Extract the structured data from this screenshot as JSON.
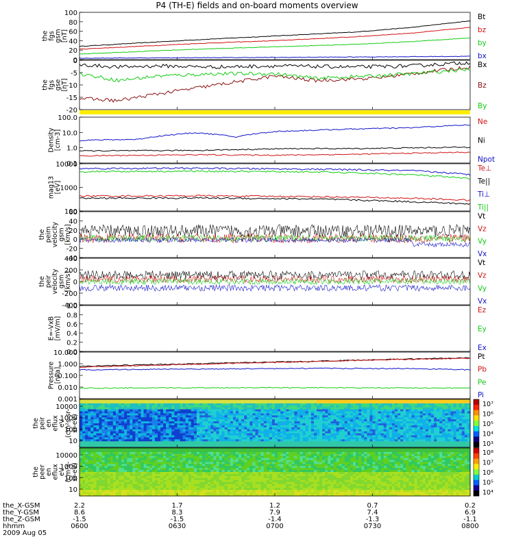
{
  "title": "P4 (TH-E) fields and on-board moments overview",
  "colors": {
    "black": "#000000",
    "red": "#d01010",
    "green": "#10cc10",
    "blue": "#1010c8",
    "yellow": "#ffee00"
  },
  "chart_data": [
    {
      "id": "fgs-mag",
      "type": "line",
      "ylabel": [
        "the",
        "fgs",
        "gsm",
        "[nT]"
      ],
      "yticks": [
        "100",
        "80",
        "60",
        "40",
        "20",
        "0"
      ],
      "ylim": [
        0,
        100
      ],
      "series": [
        {
          "name": "Bt",
          "color": "black",
          "x": [
            0,
            0.15,
            0.3,
            0.5,
            0.7,
            0.85,
            1
          ],
          "y": [
            28,
            35,
            42,
            50,
            58,
            68,
            82
          ]
        },
        {
          "name": "bz",
          "color": "red",
          "x": [
            0,
            0.15,
            0.3,
            0.5,
            0.7,
            0.85,
            1
          ],
          "y": [
            22,
            28,
            34,
            40,
            48,
            56,
            68
          ]
        },
        {
          "name": "by",
          "color": "green",
          "x": [
            0,
            0.15,
            0.3,
            0.5,
            0.7,
            0.85,
            1
          ],
          "y": [
            12,
            17,
            22,
            27,
            32,
            38,
            46
          ]
        },
        {
          "name": "bx",
          "color": "blue",
          "x": [
            0,
            0.3,
            0.6,
            1
          ],
          "y": [
            3,
            4,
            5,
            7
          ]
        }
      ]
    },
    {
      "id": "fgs-gsm",
      "type": "line",
      "ylabel": [
        "the",
        "fgs",
        "gse",
        "[nT]"
      ],
      "yticks": [
        "0",
        "-5",
        "-10",
        "-15",
        "-20"
      ],
      "ylim": [
        -22,
        0
      ],
      "series": [
        {
          "name": "Bx",
          "color": "black",
          "x": [
            0,
            0.1,
            0.2,
            0.35,
            0.5,
            0.7,
            0.85,
            1
          ],
          "y": [
            -2,
            -3,
            -2.5,
            -3,
            -2.5,
            -3,
            -2.5,
            -1
          ]
        },
        {
          "name": "Bz",
          "color": "darkred",
          "x": [
            0,
            0.1,
            0.2,
            0.35,
            0.5,
            0.6,
            0.75,
            0.85,
            1
          ],
          "y": [
            -17,
            -18,
            -15,
            -11,
            -7,
            -9,
            -8,
            -6,
            -3
          ]
        },
        {
          "name": "By",
          "color": "green",
          "x": [
            0,
            0.1,
            0.2,
            0.35,
            0.5,
            0.6,
            0.75,
            0.85,
            1
          ],
          "y": [
            -6,
            -9,
            -7,
            -6,
            -6,
            -8,
            -7,
            -6,
            -4
          ]
        }
      ]
    },
    {
      "id": "density",
      "type": "line",
      "yscale": "log",
      "ylabel": [
        "Density",
        "[cm-3]"
      ],
      "yticks": [
        "100.0",
        "10.0",
        "1.0",
        "0.1"
      ],
      "ylim": [
        0.08,
        120
      ],
      "series": [
        {
          "name": "Ne",
          "color": "red",
          "x": [
            0,
            0.3,
            0.5,
            0.7,
            1
          ],
          "y": [
            0.25,
            0.3,
            0.28,
            0.32,
            0.45
          ]
        },
        {
          "name": "Ni",
          "color": "black",
          "x": [
            0,
            0.3,
            0.55,
            0.7,
            1
          ],
          "y": [
            0.55,
            0.6,
            0.8,
            0.8,
            1.0
          ]
        },
        {
          "name": "Npot",
          "color": "blue",
          "x": [
            0,
            0.15,
            0.3,
            0.4,
            0.5,
            0.7,
            0.85,
            1
          ],
          "y": [
            3,
            3.5,
            10,
            5,
            12,
            18,
            22,
            35
          ]
        }
      ]
    },
    {
      "id": "temperature",
      "type": "line",
      "yscale": "log",
      "ylabel": [
        "mag13",
        "[eV]"
      ],
      "yticks": [
        "10000",
        "1000",
        "100"
      ],
      "ylim": [
        60,
        12000
      ],
      "series": [
        {
          "name": "Te⊥",
          "color": "red",
          "x": [
            0,
            0.3,
            0.6,
            0.85,
            1
          ],
          "y": [
            320,
            330,
            300,
            250,
            200
          ]
        },
        {
          "name": "Te||",
          "color": "black",
          "x": [
            0,
            0.3,
            0.6,
            0.85,
            1
          ],
          "y": [
            250,
            260,
            230,
            170,
            130
          ]
        },
        {
          "name": "Ti⊥",
          "color": "blue",
          "x": [
            0,
            0.3,
            0.6,
            0.85,
            1
          ],
          "y": [
            7000,
            7200,
            6500,
            5500,
            3500
          ]
        },
        {
          "name": "Ti||",
          "color": "green",
          "x": [
            0,
            0.3,
            0.6,
            0.85,
            1
          ],
          "y": [
            5000,
            5200,
            4800,
            3500,
            2200
          ]
        }
      ]
    },
    {
      "id": "peim-velocity",
      "type": "line",
      "ylabel": [
        "the",
        "peim",
        "velocity",
        "gsm",
        "[km/s]"
      ],
      "yticks": [
        "60",
        "40",
        "20",
        "0",
        "-20",
        "-40"
      ],
      "ylim": [
        -40,
        60
      ],
      "series": [
        {
          "name": "Vt",
          "color": "black"
        },
        {
          "name": "Vz",
          "color": "red"
        },
        {
          "name": "Vy",
          "color": "green"
        },
        {
          "name": "Vx",
          "color": "blue"
        }
      ]
    },
    {
      "id": "peir-velocity",
      "type": "line",
      "ylabel": [
        "the",
        "peir",
        "velocity",
        "gsm",
        "[km/s]"
      ],
      "yticks": [
        "400",
        "200",
        "0",
        "-200",
        "-400"
      ],
      "ylim": [
        -400,
        400
      ],
      "series": [
        {
          "name": "Vt",
          "color": "black"
        },
        {
          "name": "Vz",
          "color": "red"
        },
        {
          "name": "Vy",
          "color": "green"
        },
        {
          "name": "Vx",
          "color": "blue"
        }
      ]
    },
    {
      "id": "efield",
      "type": "line",
      "ylabel": [
        "E=-VxB",
        "[mV/m]"
      ],
      "yticks": [
        "1.0",
        "0.8",
        "0.6",
        "0.4",
        "0.2",
        "0.0"
      ],
      "ylim": [
        0,
        1
      ],
      "series": [
        {
          "name": "Ez",
          "color": "red"
        },
        {
          "name": "Ey",
          "color": "green"
        },
        {
          "name": "Ex",
          "color": "blue"
        }
      ]
    },
    {
      "id": "pressure",
      "type": "line",
      "yscale": "log",
      "ylabel": [
        "Pressure",
        "[nPa]"
      ],
      "yticks": [
        "10.000",
        "1.000",
        "0.100",
        "0.010",
        "0.001"
      ],
      "ylim": [
        0.001,
        10
      ],
      "series": [
        {
          "name": "Pt",
          "color": "black",
          "x": [
            0,
            0.3,
            0.6,
            1
          ],
          "y": [
            0.6,
            1.0,
            1.6,
            3.2
          ]
        },
        {
          "name": "Pb",
          "color": "red",
          "x": [
            0,
            0.3,
            0.6,
            1
          ],
          "y": [
            0.5,
            0.9,
            1.5,
            3.0
          ]
        },
        {
          "name": "Pe",
          "color": "green",
          "x": [
            0,
            0.5,
            1
          ],
          "y": [
            0.008,
            0.009,
            0.008
          ]
        },
        {
          "name": "Pi",
          "color": "blue",
          "x": [
            0,
            0.3,
            0.6,
            0.85,
            1
          ],
          "y": [
            0.3,
            0.35,
            0.4,
            0.38,
            0.3
          ]
        }
      ]
    },
    {
      "id": "peir-spectrogram",
      "type": "heatmap",
      "yscale": "log",
      "ylabel": [
        "the",
        "peir",
        "en",
        "eflux",
        "eV",
        "(cm²s-sr-",
        "sr-eV)"
      ],
      "yticks": [
        "10000",
        "1000",
        "100",
        "10"
      ],
      "colorbar_labels": [
        "10⁷",
        "10⁶",
        "10⁵",
        "10⁴",
        "10³"
      ]
    },
    {
      "id": "peer-spectrogram",
      "type": "heatmap",
      "yscale": "log",
      "ylabel": [
        "the",
        "peer",
        "en",
        "eflux",
        "eV",
        "(cm²s-",
        "sr-eV)"
      ],
      "yticks": [
        "10000",
        "1000",
        "100",
        "10"
      ],
      "colorbar_labels": [
        "10⁸",
        "10⁷",
        "10⁶",
        "10⁵",
        "10⁴"
      ]
    }
  ],
  "x_axis": {
    "rows": [
      {
        "label": "the_X-GSM",
        "values": [
          "2.2",
          "1.7",
          "1.2",
          "0.7",
          "0.2"
        ]
      },
      {
        "label": "the_Y-GSM",
        "values": [
          "8.6",
          "8.3",
          "7.9",
          "7.4",
          "6.9"
        ]
      },
      {
        "label": "the_Z-GSM",
        "values": [
          "-1.5",
          "-1.5",
          "-1.4",
          "-1.3",
          "-1.1"
        ]
      },
      {
        "label": "hhmm",
        "values": [
          "0600",
          "0630",
          "0700",
          "0730",
          "0800"
        ]
      }
    ],
    "date": "2009 Aug 05"
  }
}
